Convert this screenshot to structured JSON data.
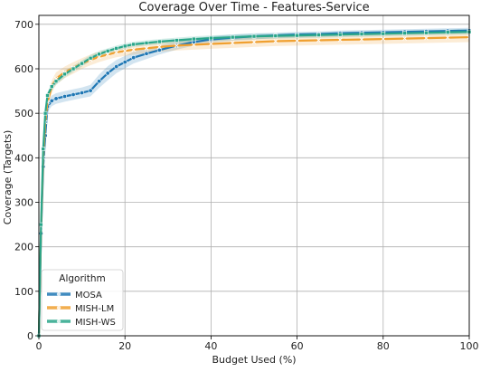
{
  "chart_data": {
    "type": "line",
    "title": "Coverage Over Time - Features-Service",
    "xlabel": "Budget Used (%)",
    "ylabel": "Coverage (Targets)",
    "xlim": [
      0,
      100
    ],
    "ylim": [
      0,
      720
    ],
    "x_ticks": [
      0,
      20,
      40,
      60,
      80,
      100
    ],
    "y_ticks": [
      0,
      100,
      200,
      300,
      400,
      500,
      600,
      700
    ],
    "grid": true,
    "legend": {
      "title": "Algorithm",
      "position": "lower-left"
    },
    "series": [
      {
        "name": "MOSA",
        "color": "#1f77b4",
        "marker": "circle",
        "x": [
          0,
          0.5,
          1,
          1.5,
          2,
          3,
          4,
          6,
          8,
          10,
          12,
          14,
          16,
          18,
          20,
          22,
          25,
          28,
          32,
          36,
          40,
          45,
          50,
          55,
          60,
          65,
          70,
          75,
          80,
          85,
          90,
          95,
          100
        ],
        "y": [
          0,
          230,
          380,
          450,
          515,
          528,
          533,
          538,
          542,
          546,
          551,
          572,
          590,
          605,
          615,
          625,
          634,
          642,
          652,
          660,
          666,
          670,
          673,
          675,
          677,
          678,
          680,
          681,
          682,
          683,
          684,
          685,
          686
        ],
        "band": [
          8,
          10,
          12,
          12,
          12,
          12,
          12,
          12,
          12,
          12,
          13,
          15,
          16,
          15,
          14,
          13,
          12,
          10,
          9,
          8,
          7,
          7,
          7,
          6,
          6,
          6,
          6,
          6,
          6,
          6,
          6,
          6,
          6
        ]
      },
      {
        "name": "MISH-LM",
        "color": "#f0a030",
        "marker": "x",
        "x": [
          0,
          0.5,
          1,
          1.5,
          2,
          3,
          4,
          6,
          8,
          10,
          12,
          14,
          16,
          18,
          20,
          22,
          25,
          28,
          32,
          36,
          40,
          45,
          50,
          55,
          60,
          65,
          70,
          75,
          80,
          85,
          90,
          95,
          100
        ],
        "y": [
          0,
          240,
          400,
          480,
          525,
          560,
          578,
          592,
          602,
          612,
          620,
          627,
          632,
          637,
          640,
          643,
          646,
          649,
          652,
          654,
          656,
          658,
          660,
          662,
          663,
          664,
          665,
          666,
          667,
          668,
          669,
          670,
          671
        ],
        "band": [
          10,
          14,
          16,
          16,
          14,
          14,
          14,
          13,
          13,
          12,
          12,
          12,
          11,
          11,
          11,
          11,
          11,
          11,
          11,
          11,
          11,
          11,
          11,
          11,
          11,
          11,
          11,
          11,
          11,
          11,
          11,
          11,
          11
        ]
      },
      {
        "name": "MISH-WS",
        "color": "#2aa68a",
        "marker": "square",
        "x": [
          0,
          0.5,
          1,
          1.5,
          2,
          3,
          4,
          6,
          8,
          10,
          12,
          14,
          16,
          18,
          20,
          22,
          25,
          28,
          32,
          36,
          40,
          45,
          50,
          55,
          60,
          65,
          70,
          75,
          80,
          85,
          90,
          95,
          100
        ],
        "y": [
          0,
          250,
          420,
          500,
          540,
          560,
          572,
          588,
          600,
          612,
          624,
          633,
          640,
          646,
          651,
          655,
          658,
          661,
          664,
          667,
          669,
          671,
          673,
          674,
          675,
          676,
          677,
          678,
          679,
          680,
          681,
          682,
          683
        ],
        "band": [
          6,
          8,
          8,
          8,
          8,
          8,
          8,
          8,
          7,
          7,
          7,
          7,
          6,
          6,
          6,
          6,
          6,
          6,
          6,
          6,
          6,
          6,
          6,
          6,
          6,
          6,
          6,
          6,
          6,
          6,
          6,
          6,
          6
        ]
      }
    ]
  }
}
